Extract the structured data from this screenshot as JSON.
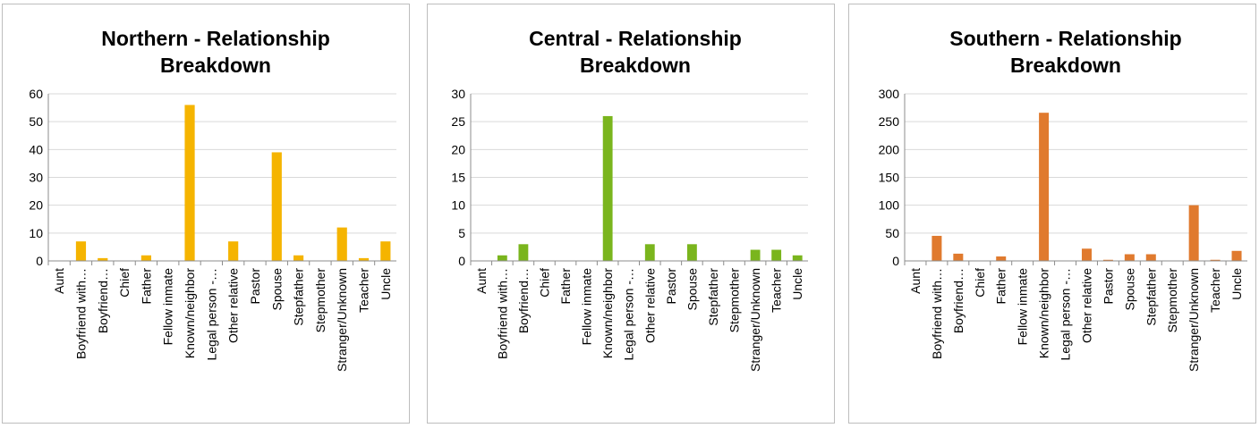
{
  "chart_data": [
    {
      "type": "bar",
      "title_line1": "Northern - Relationship",
      "title_line2": "Breakdown",
      "categories": [
        "Aunt",
        "Boyfriend with…",
        "Boyfriend…",
        "Chief",
        "Father",
        "Fellow inmate",
        "Known/neighbor",
        "Legal person -…",
        "Other relative",
        "Pastor",
        "Spouse",
        "Stepfather",
        "Stepmother",
        "Stranger/Unknown",
        "Teacher",
        "Uncle"
      ],
      "values": [
        0,
        7,
        1,
        0,
        2,
        0,
        56,
        0,
        7,
        0,
        39,
        2,
        0,
        12,
        1,
        7
      ],
      "ylim": [
        0,
        60
      ],
      "yticks": [
        "0",
        "10",
        "20",
        "30",
        "40",
        "50",
        "60"
      ],
      "color": "#F5B400",
      "xlabel": "",
      "ylabel": "",
      "legend": "none",
      "grid": "horizontal"
    },
    {
      "type": "bar",
      "title_line1": "Central - Relationship",
      "title_line2": "Breakdown",
      "categories": [
        "Aunt",
        "Boyfriend with…",
        "Boyfriend…",
        "Chief",
        "Father",
        "Fellow inmate",
        "Known/neighbor",
        "Legal person -…",
        "Other relative",
        "Pastor",
        "Spouse",
        "Stepfather",
        "Stepmother",
        "Stranger/Unknown",
        "Teacher",
        "Uncle"
      ],
      "values": [
        0,
        1,
        3,
        0,
        0,
        0,
        26,
        0,
        3,
        0,
        3,
        0,
        0,
        2,
        2,
        1
      ],
      "ylim": [
        0,
        30
      ],
      "yticks": [
        "0",
        "5",
        "10",
        "15",
        "20",
        "25",
        "30"
      ],
      "color": "#7AB51D",
      "xlabel": "",
      "ylabel": "",
      "legend": "none",
      "grid": "horizontal"
    },
    {
      "type": "bar",
      "title_line1": "Southern - Relationship",
      "title_line2": "Breakdown",
      "categories": [
        "Aunt",
        "Boyfriend with…",
        "Boyfriend…",
        "Chief",
        "Father",
        "Fellow inmate",
        "Known/neighbor",
        "Legal person -…",
        "Other relative",
        "Pastor",
        "Spouse",
        "Stepfather",
        "Stepmother",
        "Stranger/Unknown",
        "Teacher",
        "Uncle"
      ],
      "values": [
        0,
        45,
        13,
        0,
        8,
        0,
        266,
        0,
        22,
        2,
        12,
        12,
        0,
        100,
        2,
        18
      ],
      "ylim": [
        0,
        300
      ],
      "yticks": [
        "0",
        "50",
        "100",
        "150",
        "200",
        "250",
        "300"
      ],
      "color": "#E07A2E",
      "xlabel": "",
      "ylabel": "",
      "legend": "none",
      "grid": "horizontal"
    }
  ]
}
